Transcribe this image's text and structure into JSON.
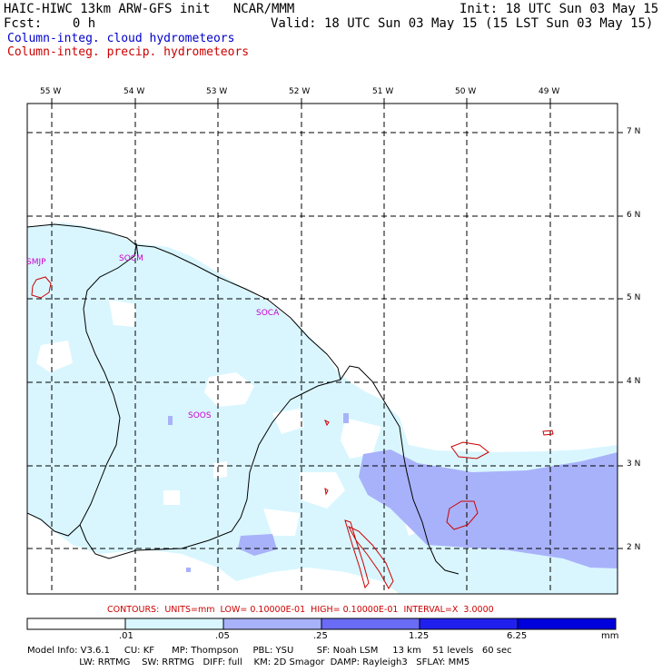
{
  "header": {
    "line1_left": "HAIC-HIWC 13km ARW-GFS init   NCAR/MMM",
    "line1_right": "Init: 18 UTC Sun 03 May 15",
    "line2_left": "Fcst:    0 h",
    "line2_right": "Valid: 18 UTC Sun 03 May 15 (15 LST Sun 03 May 15)",
    "legend_cloud": "Column-integ. cloud hydrometeors",
    "legend_precip": "Column-integ. precip. hydrometeors",
    "colors": {
      "cloud": "#0000cc",
      "precip": "#cc0000"
    }
  },
  "map": {
    "lon_labels": [
      "55 W",
      "54 W",
      "53 W",
      "52 W",
      "51 W",
      "50 W",
      "49 W"
    ],
    "lat_labels": [
      "7 N",
      "6 N",
      "5 N",
      "4 N",
      "3 N",
      "2 N"
    ],
    "stations": [
      "SMJP",
      "SOCM",
      "SOCA",
      "SOOS"
    ],
    "colors": {
      "ocean_fill": "#ffffff",
      "light_fill": "#d9f6ff",
      "mid_fill": "#a8b2fa",
      "coast": "#000000",
      "contour": "#cc0000",
      "station": "#cc00cc"
    }
  },
  "contour_note": "CONTOURS:  UNITS=mm  LOW= 0.10000E-01  HIGH= 0.10000E-01  INTERVAL=X  3.0000",
  "colorbar": {
    "labels": [
      ".01",
      ".05",
      ".25",
      "1.25",
      "6.25"
    ],
    "unit": "mm",
    "colors": [
      "#ffffff",
      "#d9f6ff",
      "#a8b2fa",
      "#6a6cf5",
      "#2020ee",
      "#0000dd"
    ]
  },
  "model_info": {
    "line1": "Model Info: V3.6.1     CU: KF      MP: Thompson     PBL: YSU        SF: Noah LSM     13 km    51 levels   60 sec",
    "line2": "                  LW: RRTMG    SW: RRTMG   DIFF: full    KM: 2D Smagor  DAMP: Rayleigh3   SFLAY: MM5"
  }
}
